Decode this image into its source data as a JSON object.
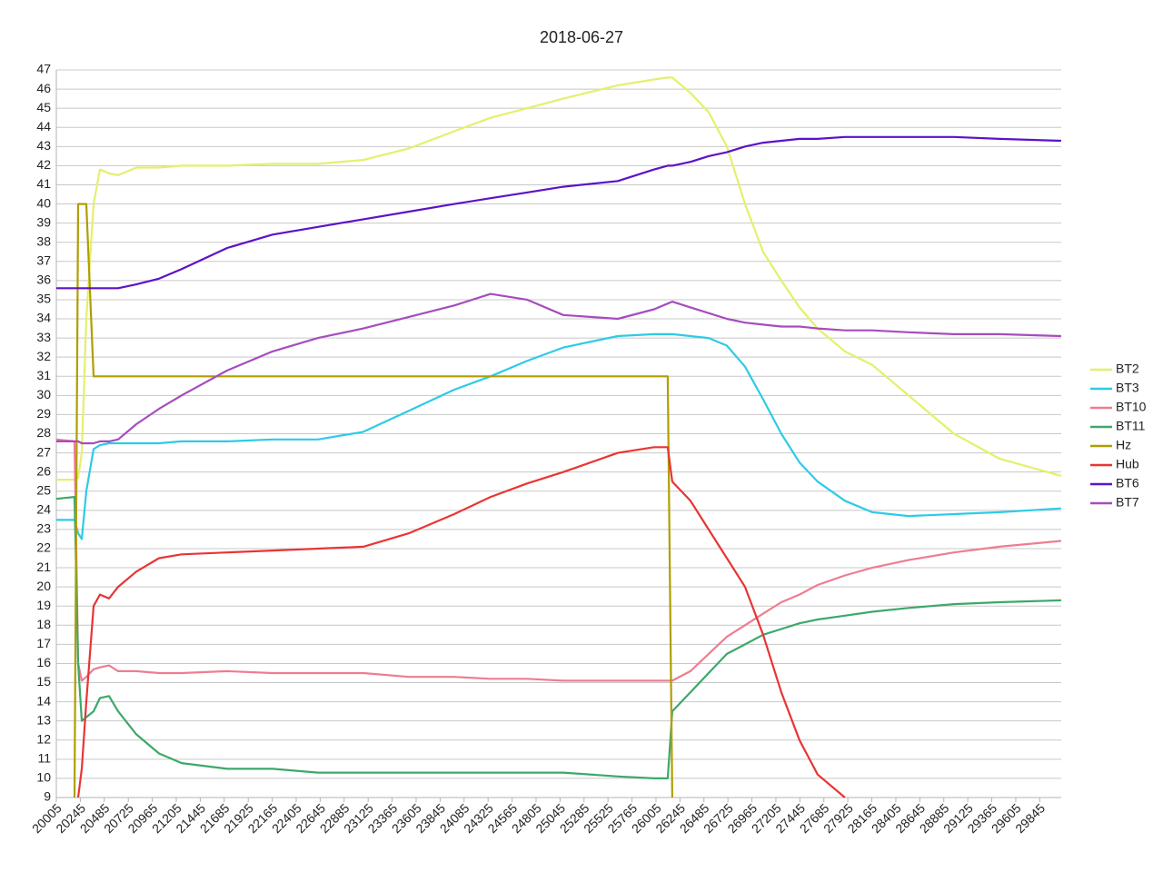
{
  "chart_data": {
    "type": "line",
    "title": "2018-06-27",
    "x": [
      20005,
      20187,
      20223,
      20260,
      20305,
      20378,
      20441,
      20532,
      20623,
      20805,
      21032,
      21259,
      21714,
      22168,
      22623,
      23077,
      23532,
      23986,
      24350,
      24714,
      25077,
      25623,
      25986,
      26123,
      26168,
      26350,
      26532,
      26714,
      26896,
      27077,
      27259,
      27441,
      27623,
      27895,
      28168,
      28532,
      28986,
      29441,
      30059
    ],
    "xlim": [
      20005,
      30060
    ],
    "xticks": [
      20005,
      20245,
      20485,
      20725,
      20965,
      21205,
      21445,
      21685,
      21925,
      22165,
      22405,
      22645,
      22885,
      23125,
      23365,
      23605,
      23845,
      24085,
      24325,
      24565,
      24805,
      25045,
      25285,
      25525,
      25765,
      26005,
      26245,
      26485,
      26725,
      26965,
      27205,
      27445,
      27685,
      27925,
      28165,
      28405,
      28645,
      28885,
      29125,
      29365,
      29605,
      29845
    ],
    "ylim": [
      9,
      47
    ],
    "yticks": [
      9,
      10,
      11,
      12,
      13,
      14,
      15,
      16,
      17,
      18,
      19,
      20,
      21,
      22,
      23,
      24,
      25,
      26,
      27,
      28,
      29,
      30,
      31,
      32,
      33,
      34,
      35,
      36,
      37,
      38,
      39,
      40,
      41,
      42,
      43,
      44,
      45,
      46,
      47
    ],
    "grid": true,
    "legend": "right",
    "series": [
      {
        "name": "BT2",
        "color": "#e4f06c",
        "values": [
          25.6,
          25.6,
          25.7,
          27,
          34,
          40,
          41.8,
          41.6,
          41.5,
          41.9,
          41.9,
          42,
          42,
          42.1,
          42.1,
          42.3,
          42.9,
          43.8,
          44.5,
          45,
          45.5,
          46.2,
          46.5,
          46.6,
          46.6,
          45.8,
          44.8,
          43,
          40,
          37.5,
          36,
          34.6,
          33.5,
          32.3,
          31.6,
          30,
          28,
          26.7,
          25.8
        ]
      },
      {
        "name": "BT3",
        "color": "#2dcbe6",
        "values": [
          23.5,
          23.5,
          22.8,
          22.5,
          25,
          27.2,
          27.4,
          27.5,
          27.5,
          27.5,
          27.5,
          27.6,
          27.6,
          27.7,
          27.7,
          28.1,
          29.2,
          30.3,
          31,
          31.8,
          32.5,
          33.1,
          33.2,
          33.2,
          33.2,
          33.1,
          33,
          32.6,
          31.5,
          29.8,
          28,
          26.5,
          25.5,
          24.5,
          23.9,
          23.7,
          23.8,
          23.9,
          24.1
        ]
      },
      {
        "name": "BT10",
        "color": "#ee7d90",
        "values": [
          27.7,
          27.6,
          16,
          15.1,
          15.3,
          15.7,
          15.8,
          15.9,
          15.6,
          15.6,
          15.5,
          15.5,
          15.6,
          15.5,
          15.5,
          15.5,
          15.3,
          15.3,
          15.2,
          15.2,
          15.1,
          15.1,
          15.1,
          15.1,
          15.1,
          15.6,
          16.5,
          17.4,
          18,
          18.6,
          19.2,
          19.6,
          20.1,
          20.6,
          21,
          21.4,
          21.8,
          22.1,
          22.4
        ]
      },
      {
        "name": "BT11",
        "color": "#3da86a",
        "values": [
          24.6,
          24.7,
          16,
          13,
          13.2,
          13.5,
          14.2,
          14.3,
          13.5,
          12.3,
          11.3,
          10.8,
          10.5,
          10.5,
          10.3,
          10.3,
          10.3,
          10.3,
          10.3,
          10.3,
          10.3,
          10.1,
          10,
          10,
          13.5,
          14.5,
          15.5,
          16.5,
          17,
          17.5,
          17.8,
          18.1,
          18.3,
          18.5,
          18.7,
          18.9,
          19.1,
          19.2,
          19.3
        ]
      },
      {
        "name": "Hz",
        "color": "#b09e00",
        "values": [
          null,
          9,
          40,
          40,
          40,
          31,
          31,
          31,
          31,
          31,
          31,
          31,
          31,
          31,
          31,
          31,
          31,
          31,
          31,
          31,
          31,
          31,
          31,
          31,
          9,
          null,
          null,
          null,
          null,
          null,
          null,
          null,
          null,
          null,
          null,
          null,
          null,
          null,
          null
        ]
      },
      {
        "name": "Hub",
        "color": "#e93434",
        "values": [
          null,
          null,
          9,
          10.5,
          14,
          19,
          19.6,
          19.4,
          20,
          20.8,
          21.5,
          21.7,
          21.8,
          21.9,
          22,
          22.1,
          22.8,
          23.8,
          24.7,
          25.4,
          26,
          27,
          27.3,
          27.3,
          25.5,
          24.5,
          23,
          21.5,
          20,
          17.5,
          14.5,
          12,
          10.2,
          9,
          null,
          null,
          null,
          null,
          null
        ]
      },
      {
        "name": "BT6",
        "color": "#5c12c8",
        "values": [
          35.6,
          35.6,
          35.6,
          35.6,
          35.6,
          35.6,
          35.6,
          35.6,
          35.6,
          35.8,
          36.1,
          36.6,
          37.7,
          38.4,
          38.8,
          39.2,
          39.6,
          40,
          40.3,
          40.6,
          40.9,
          41.2,
          41.8,
          42,
          42,
          42.2,
          42.5,
          42.7,
          43,
          43.2,
          43.3,
          43.4,
          43.4,
          43.5,
          43.5,
          43.5,
          43.5,
          43.4,
          43.3
        ]
      },
      {
        "name": "BT7",
        "color": "#a64cbe",
        "values": [
          27.6,
          27.6,
          27.6,
          27.5,
          27.5,
          27.5,
          27.6,
          27.6,
          27.7,
          28.5,
          29.3,
          30,
          31.3,
          32.3,
          33,
          33.5,
          34.1,
          34.7,
          35.3,
          35,
          34.2,
          34,
          34.5,
          34.8,
          34.9,
          34.6,
          34.3,
          34,
          33.8,
          33.7,
          33.6,
          33.6,
          33.5,
          33.4,
          33.4,
          33.3,
          33.2,
          33.2,
          33.1
        ]
      }
    ]
  }
}
